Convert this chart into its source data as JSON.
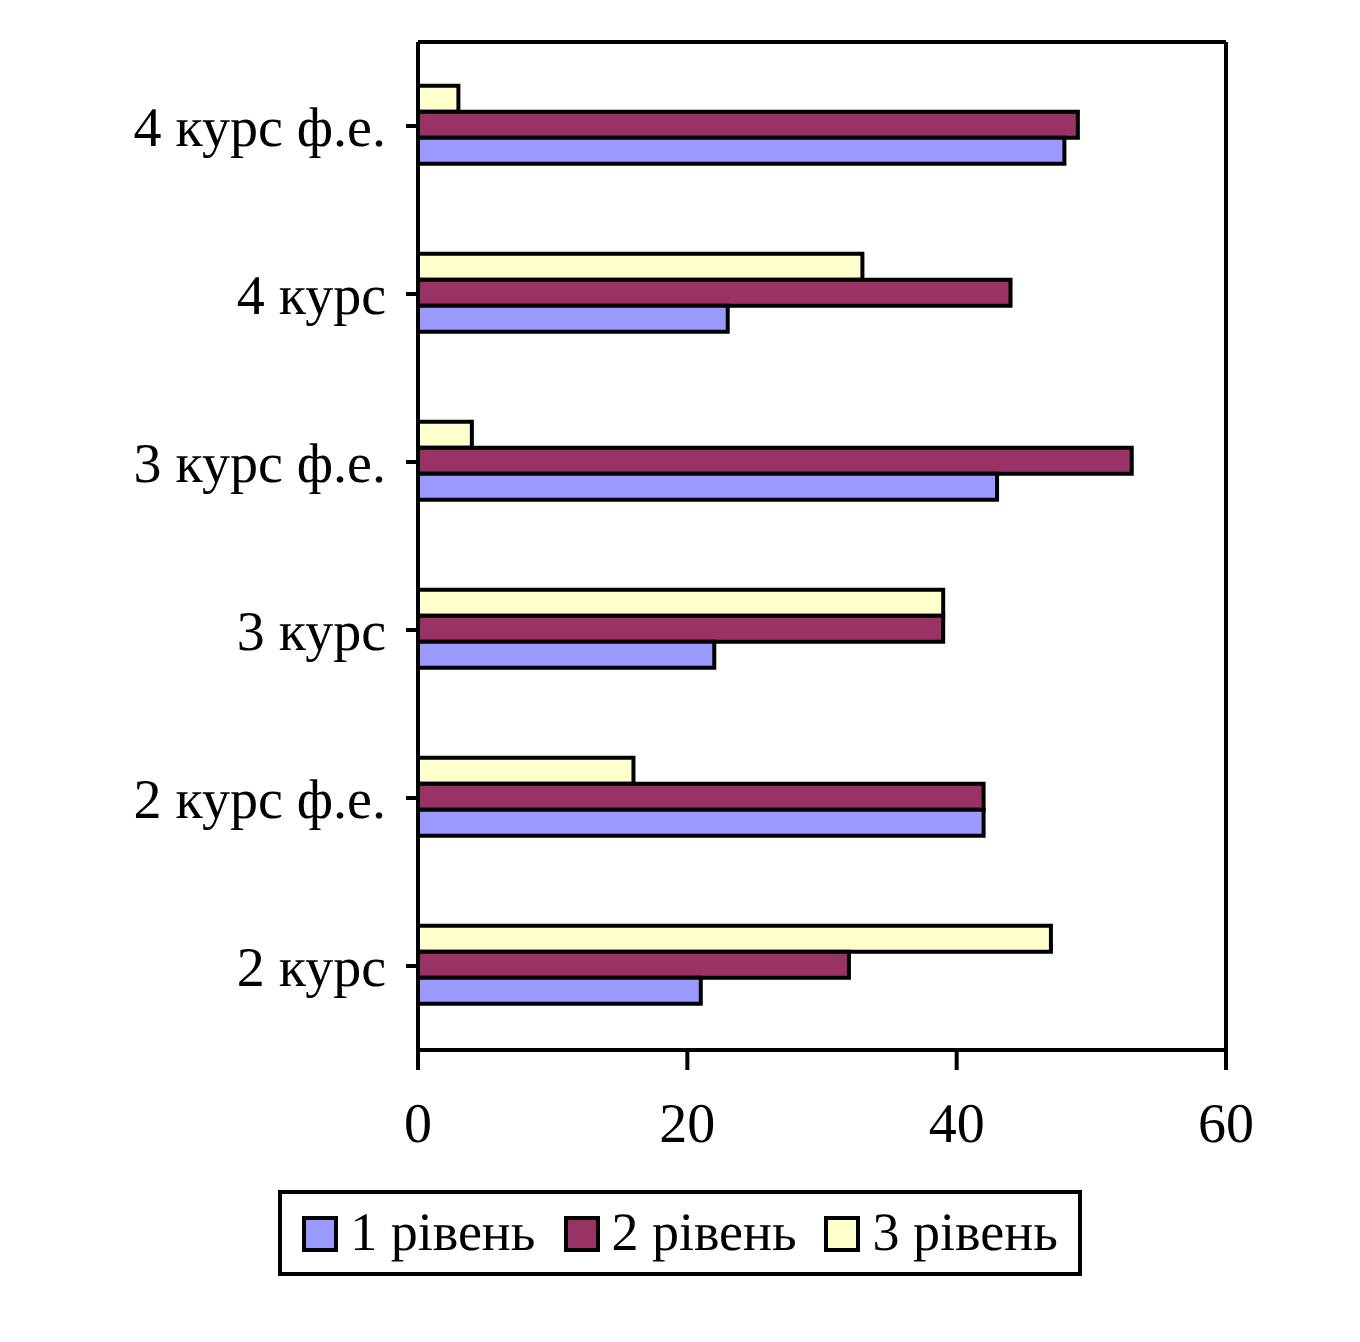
{
  "chart_data": {
    "type": "bar",
    "orientation": "horizontal",
    "categories": [
      "4 курс ф.е.",
      "4 курс",
      "3 курс ф.е.",
      "3 курс",
      "2 курс ф.е.",
      "2 курс"
    ],
    "series": [
      {
        "name": "1 рівень",
        "color": "#9999ff",
        "values": [
          48,
          23,
          43,
          22,
          42,
          21
        ]
      },
      {
        "name": "2 рівень",
        "color": "#993366",
        "values": [
          49,
          44,
          53,
          39,
          42,
          32
        ]
      },
      {
        "name": "3 рівень",
        "color": "#ffffcc",
        "values": [
          3,
          33,
          4,
          39,
          16,
          47
        ]
      }
    ],
    "xlim": [
      0,
      60
    ],
    "xticks": [
      0,
      20,
      40,
      60
    ],
    "grid": false,
    "legend": "bottom"
  }
}
